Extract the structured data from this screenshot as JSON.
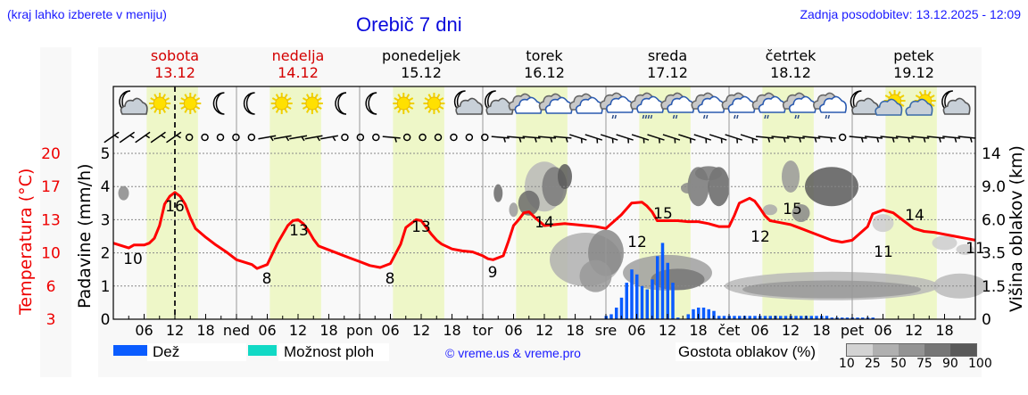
{
  "header": {
    "hint": "(kraj lahko izberete v meniju)",
    "title": "Orebič 7 dni",
    "updated": "Zadnja posodobitev: 13.12.2025 - 12:09"
  },
  "days": [
    {
      "name": "sobota",
      "date": "13.12",
      "weekend": true,
      "short": ""
    },
    {
      "name": "nedelja",
      "date": "14.12",
      "weekend": true,
      "short": "ned"
    },
    {
      "name": "ponedeljek",
      "date": "15.12",
      "weekend": false,
      "short": "pon"
    },
    {
      "name": "torek",
      "date": "16.12",
      "weekend": false,
      "short": "tor"
    },
    {
      "name": "sreda",
      "date": "17.12",
      "weekend": false,
      "short": "sre"
    },
    {
      "name": "četrtek",
      "date": "18.12",
      "weekend": false,
      "short": "čet"
    },
    {
      "name": "petek",
      "date": "19.12",
      "weekend": false,
      "short": "pet"
    }
  ],
  "axes": {
    "left_outer_label": "Temperatura (°C)",
    "left_outer_ticks": [
      "20",
      "17",
      "13",
      "10",
      "6",
      "3"
    ],
    "left_inner_label": "Padavine (mm/h)",
    "left_inner_ticks": [
      "5",
      "4",
      "3",
      "2",
      "1",
      "0"
    ],
    "right_label": "Višina oblakov (km)",
    "right_ticks": [
      "14",
      "9.0",
      "6.0",
      "3.5",
      "1.5",
      "0"
    ],
    "hour_ticks": [
      "06",
      "12",
      "18"
    ]
  },
  "legend": {
    "rain_label": "Dež",
    "rain_color": "#0a5cff",
    "storm_label": "Možnost ploh",
    "storm_color": "#11d9c5",
    "credit": "© vreme.us & vreme.pro",
    "cloud_density_label": "Gostota oblakov (%)",
    "cloud_density_ticks": [
      "10",
      "25",
      "50",
      "75",
      "90",
      "100"
    ],
    "cloud_density_colors": [
      "#d3d3d3",
      "#b0b0b0",
      "#939393",
      "#767676",
      "#595959"
    ]
  },
  "colors": {
    "temperature": "#ff0000",
    "weekend_text": "#d40000",
    "daylight_band": "#eef7c8"
  },
  "chart_data": {
    "type": "line",
    "title": "Orebič 7 dni",
    "xlabel": "",
    "ylabel": "Temperatura (°C)",
    "x_range": [
      "13.12 00:00",
      "20.12 00:00"
    ],
    "now_marker": "13.12 12:00",
    "temperature_labels": [
      {
        "time": "13.12 03:00",
        "value": 10
      },
      {
        "time": "13.12 12:00",
        "value": 16
      },
      {
        "time": "14.12 06:00",
        "value": 8
      },
      {
        "time": "14.12 12:00",
        "value": 13
      },
      {
        "time": "15.12 06:00",
        "value": 8
      },
      {
        "time": "15.12 12:00",
        "value": 13
      },
      {
        "time": "16.12 01:00",
        "value": 9
      },
      {
        "time": "16.12 06:00",
        "value": 14
      },
      {
        "time": "17.12 00:00",
        "value": 12
      },
      {
        "time": "17.12 12:00",
        "value": 15
      },
      {
        "time": "18.12 01:00",
        "value": 12
      },
      {
        "time": "18.12 12:00",
        "value": 15
      },
      {
        "time": "19.12 06:00",
        "value": 11
      },
      {
        "time": "19.12 12:00",
        "value": 14
      },
      {
        "time": "19.12 23:00",
        "value": 11
      }
    ],
    "temperature_series": {
      "hours": [
        0,
        3,
        4,
        6,
        7,
        8,
        9,
        10,
        11,
        12,
        13,
        14,
        15,
        16,
        18,
        20,
        22,
        24,
        27,
        28,
        30,
        32,
        34,
        35,
        36,
        37,
        38,
        39,
        40,
        42,
        44,
        46,
        48,
        50,
        52,
        54,
        56,
        57,
        58,
        59,
        60,
        61,
        62,
        63,
        64,
        66,
        68,
        70,
        72,
        73,
        74,
        76,
        77,
        78,
        79,
        80,
        81,
        82,
        84,
        86,
        88,
        90,
        92,
        94,
        96,
        99,
        101,
        103,
        104,
        105,
        106,
        108,
        110,
        112,
        114,
        116,
        118,
        120,
        121,
        122,
        124,
        125,
        126,
        127,
        128,
        130,
        132,
        134,
        136,
        138,
        140,
        142,
        144,
        147,
        148,
        150,
        152,
        154,
        156,
        158,
        160,
        162,
        164,
        166,
        168
      ],
      "values": [
        10.8,
        10.3,
        10.6,
        10.6,
        10.8,
        11.3,
        12.6,
        14.8,
        15.6,
        16.0,
        15.6,
        14.8,
        13.4,
        12.3,
        11.4,
        10.6,
        9.9,
        9.1,
        8.6,
        8.2,
        8.6,
        10.8,
        12.6,
        13.1,
        13.2,
        12.8,
        12.1,
        11.2,
        10.5,
        10.1,
        9.7,
        9.3,
        8.9,
        8.5,
        8.3,
        8.7,
        10.7,
        12.4,
        12.8,
        13.2,
        13.1,
        12.4,
        11.7,
        11.1,
        10.7,
        10.2,
        10.0,
        9.9,
        9.5,
        9.2,
        9.1,
        9.5,
        11.0,
        12.6,
        13.2,
        13.9,
        14.0,
        13.5,
        12.6,
        12.7,
        12.8,
        12.7,
        12.6,
        12.5,
        12.3,
        13.7,
        14.9,
        15.0,
        14.6,
        14.0,
        13.1,
        13.1,
        13.1,
        13.0,
        13.0,
        12.8,
        12.5,
        12.5,
        13.6,
        14.9,
        15.4,
        15.1,
        14.4,
        13.6,
        13.1,
        12.9,
        12.7,
        12.3,
        11.9,
        11.5,
        11.1,
        10.9,
        11.1,
        12.5,
        13.8,
        14.2,
        13.9,
        13.1,
        12.3,
        12.0,
        11.9,
        11.7,
        11.5,
        11.3,
        11.1
      ]
    },
    "precipitation_mm_h": {
      "hours": [
        96,
        97,
        98,
        99,
        100,
        101,
        102,
        103,
        104,
        105,
        106,
        107,
        108,
        109,
        110,
        111,
        112,
        113,
        114,
        115,
        116,
        117,
        118,
        119,
        120,
        121,
        122,
        123,
        124,
        125,
        126,
        127,
        128,
        129,
        130,
        131,
        132,
        133,
        134,
        135,
        136,
        137,
        138,
        139,
        140,
        141,
        142,
        143,
        144,
        145,
        146,
        147,
        148
      ],
      "values": [
        0.1,
        0.15,
        0.35,
        0.65,
        1.1,
        1.5,
        1.35,
        1.0,
        0.9,
        1.2,
        1.9,
        2.3,
        1.7,
        1.1,
        0.05,
        0.0,
        0.15,
        0.3,
        0.35,
        0.35,
        0.3,
        0.25,
        0.1,
        0.1,
        0.1,
        0.1,
        0.1,
        0.1,
        0.1,
        0.1,
        0.1,
        0.1,
        0.1,
        0.1,
        0.1,
        0.1,
        0.1,
        0.1,
        0.1,
        0.1,
        0.1,
        0.1,
        0.1,
        0.1,
        0.05,
        0.05,
        0.05,
        0.05,
        0.05,
        0.05,
        0.05,
        0.05,
        0.05
      ]
    },
    "legend": [
      "Dež",
      "Možnost ploh",
      "Gostota oblakov (%)"
    ],
    "y_left_range_precip": [
      0,
      5
    ],
    "y_left_range_temp": [
      3,
      20
    ],
    "y_right_label": "Višina oblakov (km)",
    "grid": true
  },
  "icons": [
    "moon-cloud",
    "sun",
    "sun",
    "moon",
    "moon",
    "sun",
    "sun",
    "moon",
    "moon",
    "sun",
    "sun",
    "moon-cloud",
    "moon-cloud",
    "cloud",
    "cloud",
    "cloud",
    "rain-cloud",
    "rain-cloud-heavy",
    "rain-cloud",
    "rain-cloud",
    "rain-cloud",
    "rain-cloud",
    "rain-cloud",
    "rain-cloud",
    "moon-cloud",
    "sun-cloud",
    "sun-cloud",
    "moon-cloud"
  ]
}
